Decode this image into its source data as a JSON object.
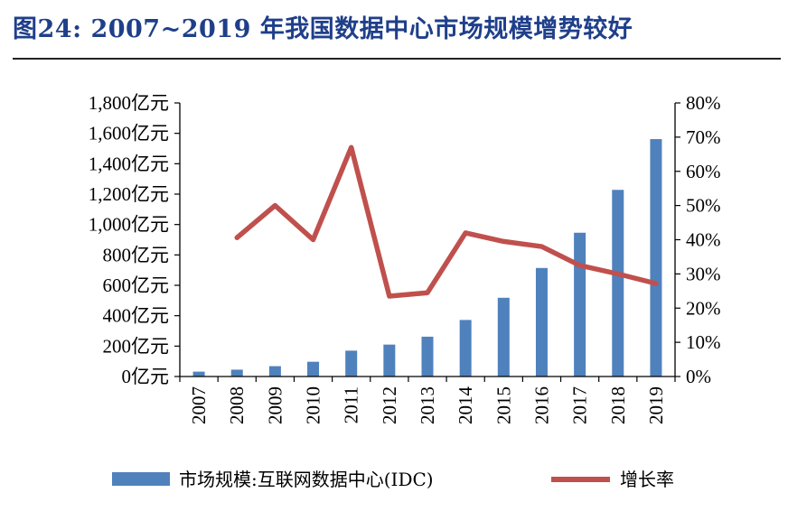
{
  "title": "图24:  2007~2019 年我国数据中心市场规模增势较好",
  "colors": {
    "bar": "#4f81bd",
    "line": "#c0504d",
    "title": "#1f3f8a"
  },
  "chart_data": {
    "type": "bar",
    "categories": [
      "2007",
      "2008",
      "2009",
      "2010",
      "2011",
      "2012",
      "2013",
      "2014",
      "2015",
      "2016",
      "2017",
      "2018",
      "2019"
    ],
    "y_left": {
      "ylim": [
        0,
        1800
      ],
      "ticks": [
        0,
        200,
        400,
        600,
        800,
        1000,
        1200,
        1400,
        1600,
        1800
      ],
      "tick_labels": [
        "0亿元",
        "200亿元",
        "400亿元",
        "600亿元",
        "800亿元",
        "1,000亿元",
        "1,200亿元",
        "1,400亿元",
        "1,600亿元",
        "1,800亿元"
      ]
    },
    "y_right": {
      "ylim": [
        0,
        0.8
      ],
      "ticks": [
        0,
        0.1,
        0.2,
        0.3,
        0.4,
        0.5,
        0.6,
        0.7,
        0.8
      ],
      "tick_labels": [
        "0%",
        "10%",
        "20%",
        "30%",
        "40%",
        "50%",
        "60%",
        "70%",
        "80%"
      ]
    },
    "series": [
      {
        "name": "市场规模:互联网数据中心(IDC)",
        "type": "bar",
        "axis": "left",
        "values": [
          32,
          45,
          68,
          97,
          170,
          210,
          262,
          372,
          518,
          714,
          946,
          1228,
          1562
        ]
      },
      {
        "name": "增长率",
        "type": "line",
        "axis": "right",
        "values": [
          null,
          0.406,
          0.5,
          0.4,
          0.67,
          0.235,
          0.245,
          0.42,
          0.395,
          0.38,
          0.325,
          0.3,
          0.272
        ]
      }
    ],
    "legend_position": "bottom",
    "grid": false
  }
}
